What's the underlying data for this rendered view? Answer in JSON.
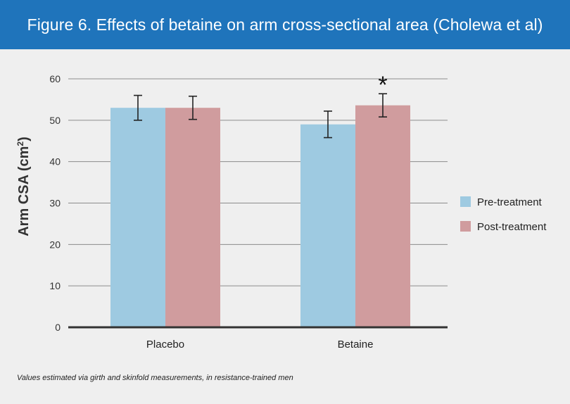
{
  "header": {
    "title": "Figure 6. Effects of betaine on arm cross-sectional area (Cholewa et al)"
  },
  "chart_data": {
    "type": "bar",
    "categories": [
      "Placebo",
      "Betaine"
    ],
    "series": [
      {
        "name": "Pre-treatment",
        "values": [
          53.0,
          49.0
        ],
        "errors": [
          3.0,
          3.2
        ],
        "color": "#9ecae1"
      },
      {
        "name": "Post-treatment",
        "values": [
          53.0,
          53.6
        ],
        "errors": [
          2.8,
          2.8
        ],
        "color": "#d09c9e"
      }
    ],
    "ylabel_text": "Arm CSA (cm",
    "ylabel_sup": "2",
    "ylabel_close": ")",
    "ylim": [
      0,
      60
    ],
    "yticks": [
      "0",
      "10",
      "20",
      "30",
      "40",
      "50",
      "60"
    ],
    "grid": true,
    "legend_position": "right",
    "significance_marker": {
      "category": "Betaine",
      "series": "Post-treatment",
      "symbol": "*"
    }
  },
  "footnote": "Values estimated via girth and skinfold measurements, in resistance-trained men",
  "colors": {
    "header_bg": "#1f74bb",
    "pre": "#9ecae1",
    "post": "#d09c9e",
    "grid": "#8c8c8c",
    "axis": "#333333"
  }
}
